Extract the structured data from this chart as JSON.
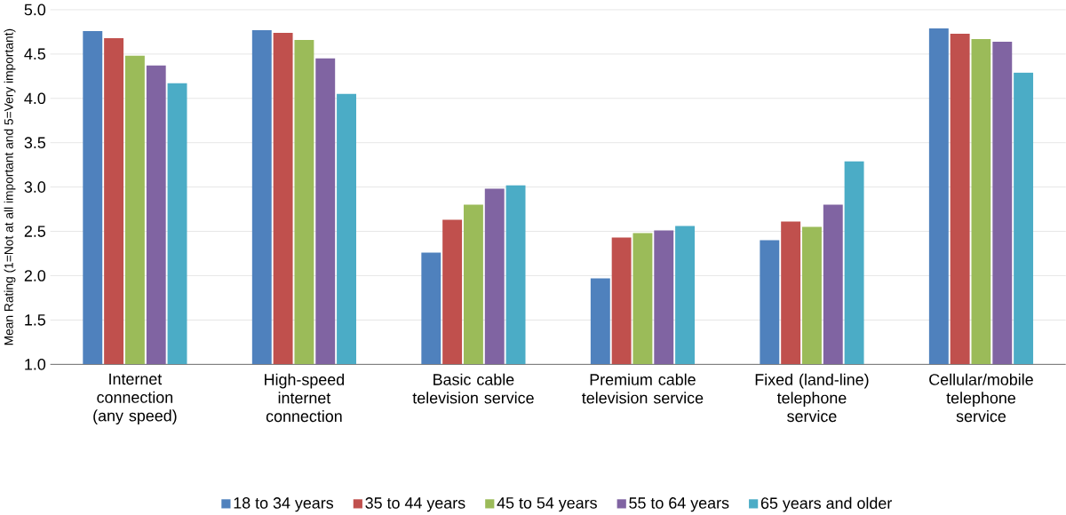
{
  "chart_data": {
    "type": "bar",
    "ylabel": "Mean Rating (1=Not at all important and 5=Very important)",
    "categories": [
      "Internet connection (any speed)",
      "High-speed internet connection",
      "Basic cable television service",
      "Premium cable television service",
      "Fixed (land-line) telephone service",
      "Cellular/mobile telephone service"
    ],
    "series": [
      {
        "name": "18 to 34 years",
        "color": "#4f81bd",
        "values": [
          4.76,
          4.77,
          2.26,
          1.97,
          2.4,
          4.79
        ]
      },
      {
        "name": "35 to 44 years",
        "color": "#c0504d",
        "values": [
          4.68,
          4.74,
          2.63,
          2.43,
          2.61,
          4.73
        ]
      },
      {
        "name": "45 to 54 years",
        "color": "#9bbb59",
        "values": [
          4.48,
          4.66,
          2.8,
          2.48,
          2.55,
          4.67
        ]
      },
      {
        "name": "55 to 64 years",
        "color": "#8064a2",
        "values": [
          4.37,
          4.45,
          2.98,
          2.51,
          2.8,
          4.64
        ]
      },
      {
        "name": "65 years and older",
        "color": "#4bacc6",
        "values": [
          4.17,
          4.05,
          3.02,
          2.56,
          3.29,
          4.29
        ]
      }
    ],
    "ylim": [
      1,
      5
    ],
    "yticks": [
      {
        "value": 1,
        "label": "1.0"
      },
      {
        "value": 1.5,
        "label": "1.5"
      },
      {
        "value": 2,
        "label": "2.0"
      },
      {
        "value": 2.5,
        "label": "2.5"
      },
      {
        "value": 3,
        "label": "3.0"
      },
      {
        "value": 3.5,
        "label": "3.5"
      },
      {
        "value": 4,
        "label": "4.0"
      },
      {
        "value": 4.5,
        "label": "4.5"
      },
      {
        "value": 5,
        "label": "5.0"
      }
    ],
    "grid": "y",
    "legend": "bottom"
  }
}
